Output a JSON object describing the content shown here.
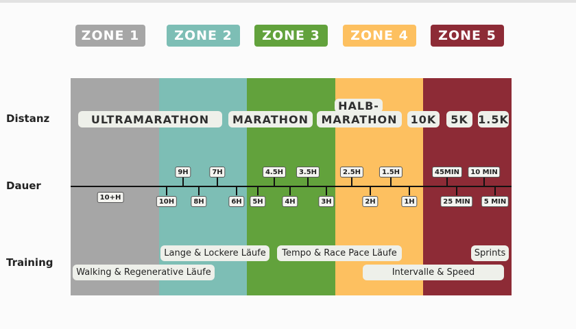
{
  "zones": [
    {
      "label": "ZONE 1"
    },
    {
      "label": "ZONE 2"
    },
    {
      "label": "ZONE 3"
    },
    {
      "label": "ZONE 4"
    },
    {
      "label": "ZONE 5"
    }
  ],
  "row_labels": {
    "distance": "Distanz",
    "duration": "Dauer",
    "training": "Training"
  },
  "distances": [
    "ULTRAMARATHON",
    "MARATHON",
    "HALB-",
    "MARATHON",
    "10K",
    "5K",
    "1.5K"
  ],
  "durations_above": [
    "9H",
    "7H",
    "4.5H",
    "3.5H",
    "2.5H",
    "1.5H",
    "45MIN",
    "10 MIN"
  ],
  "durations_below": [
    "10+H",
    "10H",
    "8H",
    "6H",
    "5H",
    "4H",
    "3H",
    "2H",
    "1H",
    "25 MIN",
    "5 MIN"
  ],
  "trainings": [
    "Lange & Lockere Läufe",
    "Tempo & Race Pace Läufe",
    "Sprints",
    "Walking & Regenerative Läufe",
    "Intervalle & Speed"
  ]
}
